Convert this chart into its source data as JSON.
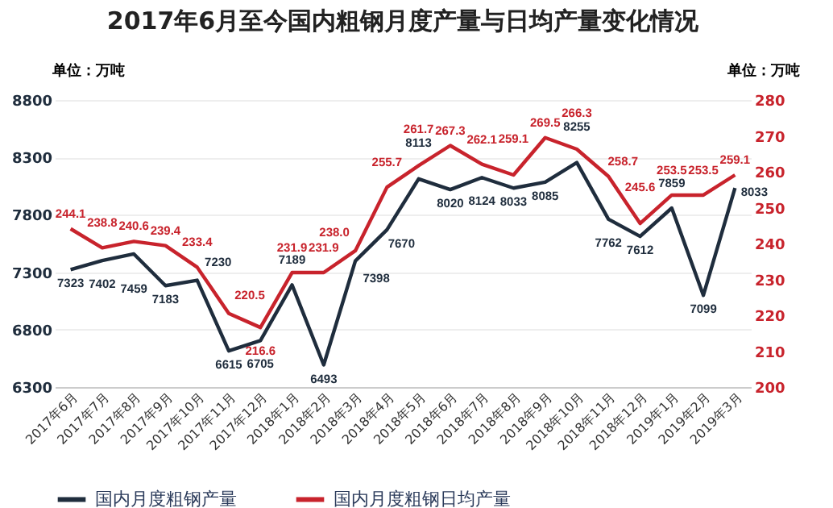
{
  "chart_data": {
    "type": "line",
    "title": "2017年6月至今国内粗钢月度产量与日均产量变化情况",
    "ylabel": "单位：万吨",
    "y2label": "单位：万吨",
    "categories": [
      "2017年6月",
      "2017年7月",
      "2017年8月",
      "2017年9月",
      "2017年10月",
      "2017年11月",
      "2017年12月",
      "2018年1月",
      "2018年2月",
      "2018年3月",
      "2018年4月",
      "2018年5月",
      "2018年6月",
      "2018年7月",
      "2018年8月",
      "2018年9月",
      "2018年10月",
      "2018年11月",
      "2018年12月",
      "2019年1月",
      "2019年2月",
      "2019年3月"
    ],
    "series": [
      {
        "name": "国内月度粗钢产量",
        "color": "#1f2d3d",
        "values": [
          7323,
          7402,
          7459,
          7183,
          7230,
          6615,
          6705,
          7189,
          6493,
          7398,
          7670,
          8113,
          8020,
          8124,
          8033,
          8085,
          8255,
          7762,
          7612,
          7859,
          7099,
          8033
        ]
      },
      {
        "name": "国内月度粗钢日均产量",
        "color": "#c8232c",
        "axis": "y2",
        "values": [
          244.1,
          238.8,
          240.6,
          239.4,
          233.4,
          220.5,
          216.6,
          231.9,
          231.9,
          238.0,
          255.7,
          261.7,
          267.3,
          262.1,
          259.1,
          269.5,
          266.3,
          258.7,
          245.6,
          253.5,
          253.5,
          259.1
        ],
        "value_labels": [
          "244.1",
          "238.8",
          "240.6",
          "239.4",
          "233.4",
          "220.5",
          "216.6",
          "231.9",
          "231.9",
          "238.0",
          "255.7",
          "261.7",
          "267.3",
          "262.1",
          "259.1",
          "269.5",
          "266.3",
          "258.7",
          "245.6",
          "253.5",
          "253.5",
          "259.1"
        ]
      }
    ],
    "ylim": [
      6300,
      8800
    ],
    "yticks": [
      6300,
      6800,
      7300,
      7800,
      8300,
      8800
    ],
    "y2lim": [
      200,
      280
    ],
    "y2ticks": [
      200,
      210,
      220,
      230,
      240,
      250,
      260,
      270,
      280
    ],
    "grid": "y",
    "legend": "bottom",
    "data_labels": true
  }
}
